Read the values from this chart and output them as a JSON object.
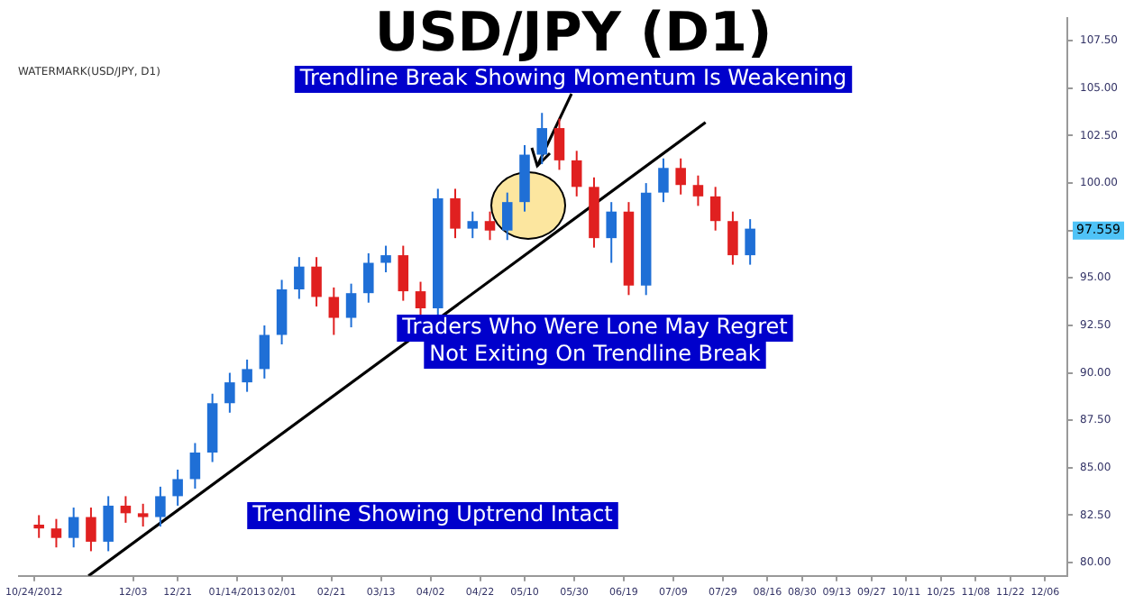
{
  "chart_data": {
    "type": "candlestick",
    "title": "USD/JPY (D1)",
    "x": [
      "2012-10-26",
      "2012-11-02",
      "2012-11-09",
      "2012-11-16",
      "2012-11-23",
      "2012-11-30",
      "2012-12-07",
      "2012-12-14",
      "2012-12-21",
      "2012-12-28",
      "2013-01-04",
      "2013-01-11",
      "2013-01-18",
      "2013-01-25",
      "2013-02-01",
      "2013-02-08",
      "2013-02-15",
      "2013-02-22",
      "2013-03-01",
      "2013-03-08",
      "2013-03-15",
      "2013-03-22",
      "2013-03-29",
      "2013-04-05",
      "2013-04-12",
      "2013-04-19",
      "2013-04-26",
      "2013-05-03",
      "2013-05-10",
      "2013-05-17",
      "2013-05-24",
      "2013-05-31",
      "2013-06-07",
      "2013-06-14",
      "2013-06-21",
      "2013-06-28",
      "2013-07-05",
      "2013-07-12",
      "2013-07-19",
      "2013-07-26",
      "2013-08-02",
      "2013-08-09"
    ],
    "ohlc": [
      [
        82.0,
        82.5,
        81.3,
        81.8
      ],
      [
        81.8,
        82.3,
        80.8,
        81.3
      ],
      [
        81.3,
        82.9,
        80.8,
        82.4
      ],
      [
        82.4,
        82.9,
        80.6,
        81.1
      ],
      [
        81.1,
        83.5,
        80.6,
        83.0
      ],
      [
        83.0,
        83.5,
        82.1,
        82.6
      ],
      [
        82.6,
        83.1,
        81.9,
        82.4
      ],
      [
        82.4,
        84.0,
        81.9,
        83.5
      ],
      [
        83.5,
        84.9,
        83.0,
        84.4
      ],
      [
        84.4,
        86.3,
        83.9,
        85.8
      ],
      [
        85.8,
        88.9,
        85.3,
        88.4
      ],
      [
        88.4,
        90.0,
        87.9,
        89.5
      ],
      [
        89.5,
        90.7,
        89.0,
        90.2
      ],
      [
        90.2,
        92.5,
        89.7,
        92.0
      ],
      [
        92.0,
        94.9,
        91.5,
        94.4
      ],
      [
        94.4,
        96.1,
        93.9,
        95.6
      ],
      [
        95.6,
        96.1,
        93.5,
        94.0
      ],
      [
        94.0,
        94.5,
        92.0,
        92.9
      ],
      [
        92.9,
        94.7,
        92.4,
        94.2
      ],
      [
        94.2,
        96.3,
        93.7,
        95.8
      ],
      [
        95.8,
        96.7,
        95.3,
        96.2
      ],
      [
        96.2,
        96.7,
        93.8,
        94.3
      ],
      [
        94.3,
        94.8,
        92.9,
        93.4
      ],
      [
        93.4,
        99.7,
        92.9,
        99.2
      ],
      [
        99.2,
        99.7,
        97.1,
        97.6
      ],
      [
        97.6,
        98.5,
        97.1,
        98.0
      ],
      [
        98.0,
        98.5,
        97.0,
        97.5
      ],
      [
        97.5,
        99.5,
        97.0,
        99.0
      ],
      [
        99.0,
        102.0,
        98.5,
        101.5
      ],
      [
        101.5,
        103.7,
        101.0,
        102.9
      ],
      [
        102.9,
        103.4,
        100.7,
        101.2
      ],
      [
        101.2,
        101.7,
        99.3,
        99.8
      ],
      [
        99.8,
        100.3,
        96.6,
        97.1
      ],
      [
        97.1,
        99.0,
        95.8,
        98.5
      ],
      [
        98.5,
        99.0,
        94.1,
        94.6
      ],
      [
        94.6,
        100.0,
        94.1,
        99.5
      ],
      [
        99.5,
        101.3,
        99.0,
        100.8
      ],
      [
        100.8,
        101.3,
        99.4,
        99.9
      ],
      [
        99.9,
        100.4,
        98.8,
        99.3
      ],
      [
        99.3,
        99.8,
        97.5,
        98.0
      ],
      [
        98.0,
        98.5,
        95.7,
        96.2
      ],
      [
        96.2,
        98.1,
        95.7,
        97.6
      ]
    ],
    "colors": [
      "#e02020",
      "#e02020",
      "#1f6fd6",
      "#e02020",
      "#1f6fd6",
      "#e02020",
      "#e02020",
      "#1f6fd6",
      "#1f6fd6",
      "#1f6fd6",
      "#1f6fd6",
      "#1f6fd6",
      "#1f6fd6",
      "#1f6fd6",
      "#1f6fd6",
      "#1f6fd6",
      "#e02020",
      "#e02020",
      "#1f6fd6",
      "#1f6fd6",
      "#1f6fd6",
      "#e02020",
      "#e02020",
      "#1f6fd6",
      "#e02020",
      "#1f6fd6",
      "#e02020",
      "#1f6fd6",
      "#1f6fd6",
      "#1f6fd6",
      "#e02020",
      "#e02020",
      "#e02020",
      "#1f6fd6",
      "#e02020",
      "#1f6fd6",
      "#1f6fd6",
      "#e02020",
      "#e02020",
      "#e02020",
      "#e02020",
      "#1f6fd6"
    ],
    "series": [
      {
        "type": "line",
        "x": [
          "2012-11-15",
          "2013-07-22"
        ],
        "values": [
          79.3,
          103.2
        ],
        "color": "#000000"
      }
    ],
    "xlim": [
      "2012-10-18",
      "2013-12-15"
    ],
    "xticks": [
      {
        "value": "2012-10-24",
        "label": "10/24/2012"
      },
      {
        "value": "2012-12-03",
        "label": "12/03"
      },
      {
        "value": "2012-12-21",
        "label": "12/21"
      },
      {
        "value": "2013-01-14",
        "label": "01/14/2013"
      },
      {
        "value": "2013-02-01",
        "label": "02/01"
      },
      {
        "value": "2013-02-21",
        "label": "02/21"
      },
      {
        "value": "2013-03-13",
        "label": "03/13"
      },
      {
        "value": "2013-04-02",
        "label": "04/02"
      },
      {
        "value": "2013-04-22",
        "label": "04/22"
      },
      {
        "value": "2013-05-10",
        "label": "05/10"
      },
      {
        "value": "2013-05-30",
        "label": "05/30"
      },
      {
        "value": "2013-06-19",
        "label": "06/19"
      },
      {
        "value": "2013-07-09",
        "label": "07/09"
      },
      {
        "value": "2013-07-29",
        "label": "07/29"
      },
      {
        "value": "2013-08-16",
        "label": "08/16"
      },
      {
        "value": "2013-08-30",
        "label": "08/30"
      },
      {
        "value": "2013-09-13",
        "label": "09/13"
      },
      {
        "value": "2013-09-27",
        "label": "09/27"
      },
      {
        "value": "2013-10-11",
        "label": "10/11"
      },
      {
        "value": "2013-10-25",
        "label": "10/25"
      },
      {
        "value": "2013-11-08",
        "label": "11/08"
      },
      {
        "value": "2013-11-22",
        "label": "11/22"
      },
      {
        "value": "2013-12-06",
        "label": "12/06"
      }
    ],
    "ylim": [
      79.3,
      108.7
    ],
    "yticks": [
      {
        "value": 80,
        "label": "80.00"
      },
      {
        "value": 82.5,
        "label": "82.50"
      },
      {
        "value": 85,
        "label": "85.00"
      },
      {
        "value": 87.5,
        "label": "87.50"
      },
      {
        "value": 90,
        "label": "90.00"
      },
      {
        "value": 92.5,
        "label": "92.50"
      },
      {
        "value": 95,
        "label": "95.00"
      },
      {
        "value": 97.5,
        "label": null
      },
      {
        "value": 100,
        "label": "100.00"
      },
      {
        "value": 102.5,
        "label": "102.50"
      },
      {
        "value": 105,
        "label": "105.00"
      },
      {
        "value": 107.5,
        "label": "107.50"
      }
    ],
    "grid": false,
    "legend": false,
    "annotations": [
      "WATERMARK(USD/JPY, D1)",
      "Trendline Break Showing Momentum Is Weakening",
      "Traders Who Were Lone May Regret\nNot Exiting On Trendline Break",
      "Trendline Showing Uptrend Intact",
      "97.559"
    ]
  }
}
